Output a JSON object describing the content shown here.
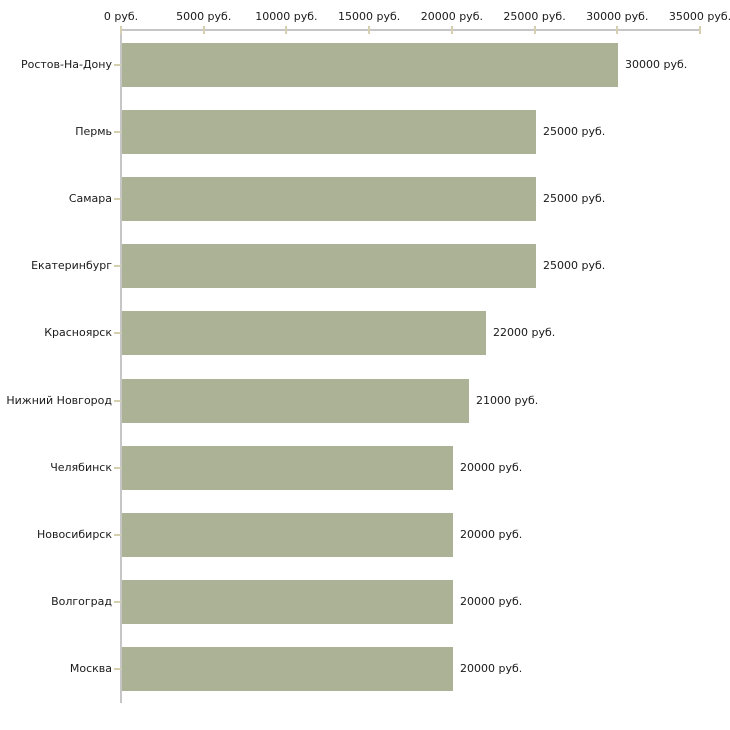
{
  "chart_data": {
    "type": "bar",
    "orientation": "horizontal",
    "title": "",
    "xlabel": "",
    "ylabel": "",
    "xlim": [
      0,
      35000
    ],
    "grid": false,
    "legend": "none",
    "unit_suffix": " руб.",
    "x_ticks": [
      "0 руб.",
      "5000 руб.",
      "10000 руб.",
      "15000 руб.",
      "20000 руб.",
      "25000 руб.",
      "30000 руб.",
      "35000 руб."
    ],
    "x_tick_values": [
      0,
      5000,
      10000,
      15000,
      20000,
      25000,
      30000,
      35000
    ],
    "categories": [
      "Ростов-На-Дону",
      "Пермь",
      "Самара",
      "Екатеринбург",
      "Красноярск",
      "Нижний Новгород",
      "Челябинск",
      "Новосибирск",
      "Волгоград",
      "Москва"
    ],
    "values": [
      30000,
      25000,
      25000,
      25000,
      22000,
      21000,
      20000,
      20000,
      20000,
      20000
    ],
    "value_labels": [
      "30000 руб.",
      "25000 руб.",
      "25000 руб.",
      "25000 руб.",
      "22000 руб.",
      "21000 руб.",
      "20000 руб.",
      "20000 руб.",
      "20000 руб.",
      "20000 руб."
    ],
    "colors": {
      "bar": "#acb296",
      "axis": "#c6c6c6",
      "tick": "#d5d1ae",
      "text": "#1a1a1a",
      "background": "#ffffff"
    }
  }
}
